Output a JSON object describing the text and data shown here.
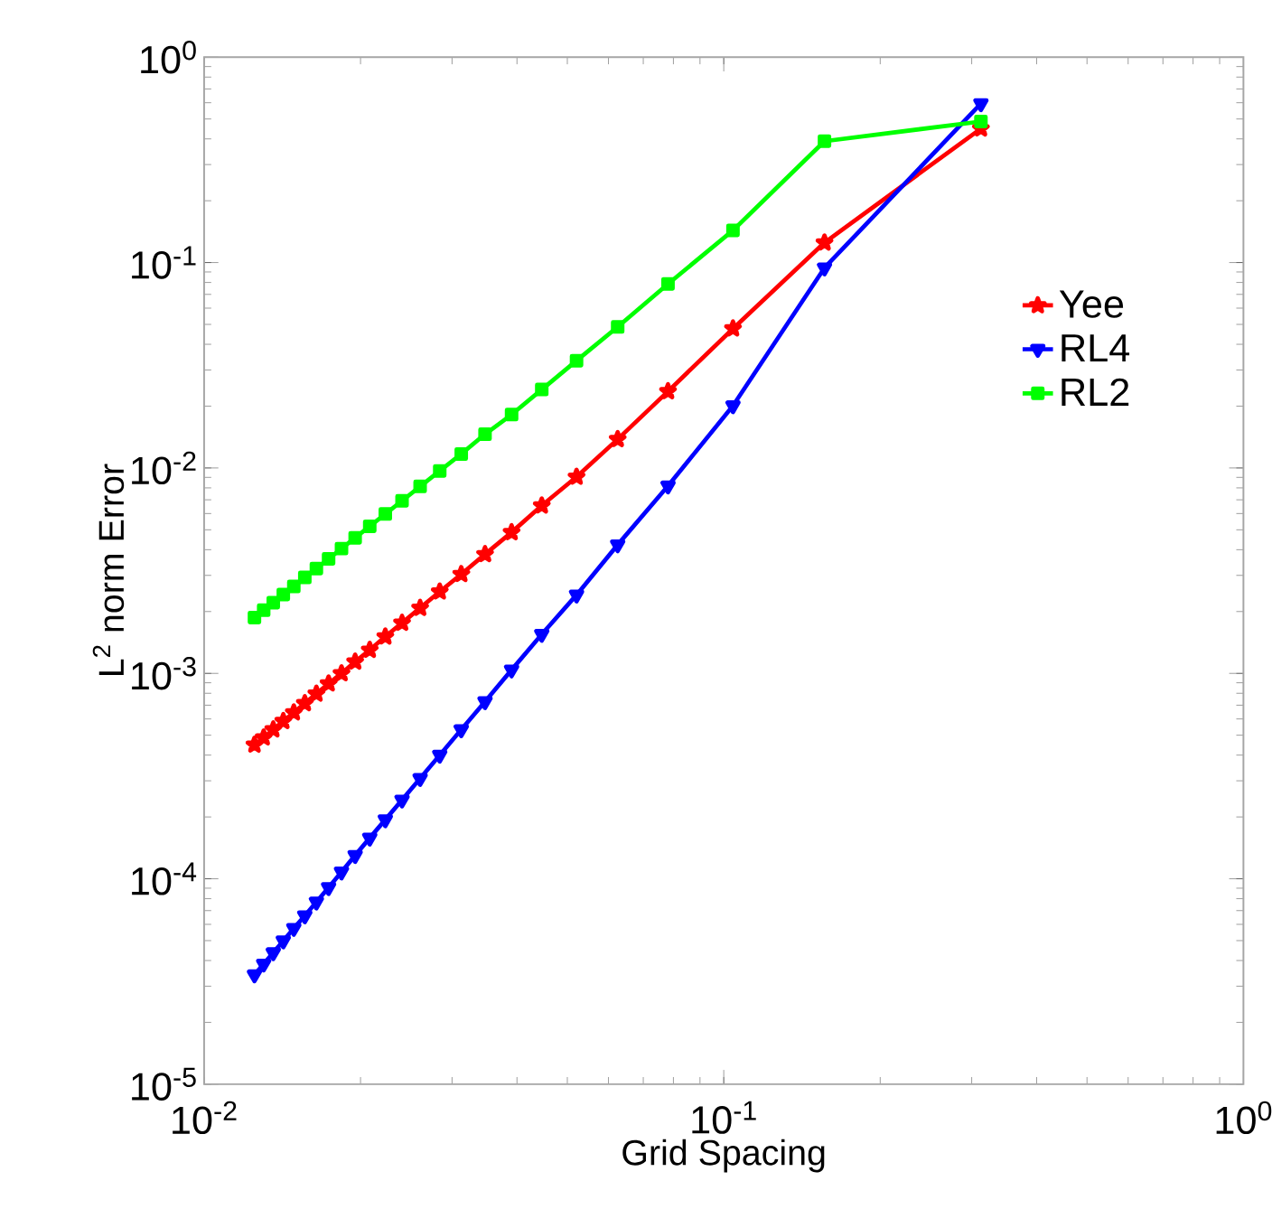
{
  "chart_data": {
    "type": "line",
    "xlabel": "Grid Spacing",
    "ylabel": "L$^{2}$ norm Error",
    "log": "xy",
    "xlim": [
      0.01,
      1
    ],
    "ylim": [
      1e-05,
      1
    ],
    "xticks": [
      {
        "value": 0.01,
        "label": "10$^{-2}$"
      },
      {
        "value": 0.1,
        "label": "10$^{-1}$"
      },
      {
        "value": 1,
        "label": "10$^{0}$"
      }
    ],
    "yticks": [
      {
        "value": 1e-05,
        "label": "10$^{-5}$"
      },
      {
        "value": 0.0001,
        "label": "10$^{-4}$"
      },
      {
        "value": 0.001,
        "label": "10$^{-3}$"
      },
      {
        "value": 0.01,
        "label": "10$^{-2}$"
      },
      {
        "value": 0.1,
        "label": "10$^{-1}$"
      },
      {
        "value": 1,
        "label": "10$^{0}$"
      }
    ],
    "x": [
      0.3125,
      0.15625,
      0.10417,
      0.078125,
      0.0625,
      0.052083,
      0.044643,
      0.039063,
      0.034722,
      0.03125,
      0.028409,
      0.026042,
      0.024038,
      0.022321,
      0.020833,
      0.019531,
      0.018382,
      0.017361,
      0.016447,
      0.015625,
      0.014881,
      0.014205,
      0.013587,
      0.013021,
      0.0125
    ],
    "legend": "right",
    "grid": false,
    "series": [
      {
        "name": "Yee",
        "color": "#ff0000",
        "marker": "star",
        "values": [
          0.449,
          0.125,
          0.0477,
          0.0236,
          0.0138,
          0.00905,
          0.00656,
          0.00486,
          0.0038,
          0.00304,
          0.0025,
          0.00208,
          0.00176,
          0.00151,
          0.0013,
          0.00114,
          0.001,
          0.000892,
          0.000796,
          0.000715,
          0.000645,
          0.000585,
          0.000533,
          0.000487,
          0.000449
        ]
      },
      {
        "name": "RL4",
        "color": "#0000ff",
        "marker": "triangle",
        "values": [
          0.594,
          0.0942,
          0.0201,
          0.00818,
          0.00423,
          0.00241,
          0.00155,
          0.00104,
          0.000729,
          0.000532,
          0.0004,
          0.000308,
          0.000242,
          0.000194,
          0.000158,
          0.00013,
          0.000108,
          9.07e-05,
          7.71e-05,
          6.61e-05,
          5.74e-05,
          4.99e-05,
          4.37e-05,
          3.85e-05,
          3.41e-05
        ]
      },
      {
        "name": "RL2",
        "color": "#00ff00",
        "marker": "square",
        "values": [
          0.486,
          0.39,
          0.1435,
          0.0787,
          0.0486,
          0.0333,
          0.0241,
          0.0182,
          0.0146,
          0.0117,
          0.00967,
          0.00813,
          0.00692,
          0.00597,
          0.0052,
          0.00457,
          0.00405,
          0.00361,
          0.00324,
          0.00293,
          0.00265,
          0.00242,
          0.00221,
          0.00203,
          0.00187
        ]
      }
    ]
  }
}
